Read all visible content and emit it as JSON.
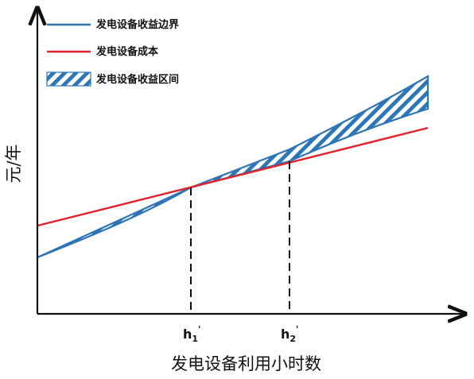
{
  "legend": {
    "items": [
      {
        "label": "发电设备收益边界",
        "type": "line",
        "color": "#2E75B6"
      },
      {
        "label": "发电设备成本",
        "type": "line",
        "color": "#E2222A"
      },
      {
        "label": "发电设备收益区间",
        "type": "hatch",
        "color": "#2E75B6"
      }
    ]
  },
  "axes": {
    "x_title": "发电设备利用小时数",
    "y_title": "元/年"
  },
  "ticks": {
    "h1": {
      "base": "h",
      "sub": "1",
      "sup": "'"
    },
    "h2": {
      "base": "h",
      "sub": "2",
      "sup": "'"
    }
  },
  "colors": {
    "benefit": "#2E75B6",
    "cost": "#E2222A",
    "axis": "#111111"
  }
}
